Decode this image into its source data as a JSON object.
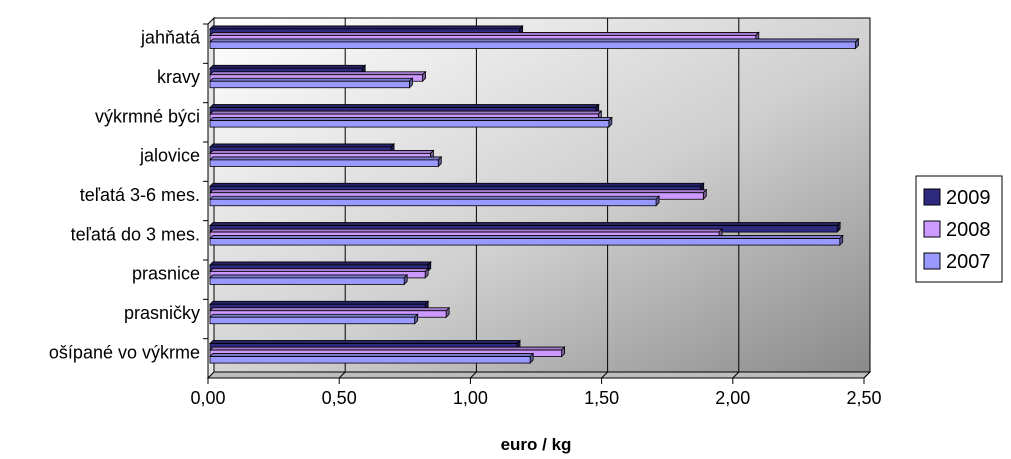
{
  "chart_data": {
    "type": "bar",
    "orientation": "horizontal",
    "categories": [
      "jahňatá",
      "kravy",
      "výkrmné býci",
      "jalovice",
      "teľatá 3-6 mes.",
      "teľatá do 3 mes.",
      "prasnice",
      "prasničky",
      "ošípané vo výkrme"
    ],
    "series": [
      {
        "name": "2009",
        "color": "#2e2a80",
        "values": [
          1.18,
          0.58,
          1.47,
          0.69,
          1.87,
          2.39,
          0.83,
          0.82,
          1.17
        ]
      },
      {
        "name": "2008",
        "color": "#cc99ff",
        "values": [
          2.08,
          0.81,
          1.48,
          0.84,
          1.88,
          1.94,
          0.82,
          0.9,
          1.34
        ]
      },
      {
        "name": "2007",
        "color": "#9999ff",
        "values": [
          2.46,
          0.76,
          1.52,
          0.87,
          1.7,
          2.4,
          0.74,
          0.78,
          1.22
        ]
      }
    ],
    "xlim": [
      0,
      2.5
    ],
    "ticks": [
      "0,00",
      "0,50",
      "1,00",
      "1,50",
      "2,00",
      "2,50"
    ],
    "tick_values": [
      0,
      0.5,
      1.0,
      1.5,
      2.0,
      2.5
    ],
    "xlabel": "euro / kg",
    "ylabel": "",
    "title": "",
    "grid": true,
    "legend_position": "right",
    "background": "gradient-gray"
  }
}
